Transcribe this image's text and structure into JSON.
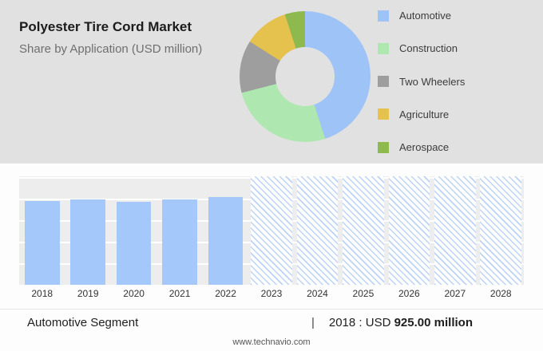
{
  "header": {
    "title": "Polyester Tire Cord Market",
    "subtitle": "Share by Application (USD million)"
  },
  "legend": [
    {
      "label": "Automotive",
      "color": "#9dc3f7"
    },
    {
      "label": "Construction",
      "color": "#aee8b0"
    },
    {
      "label": "Two Wheelers",
      "color": "#9e9e9e"
    },
    {
      "label": "Agriculture",
      "color": "#e5c14d"
    },
    {
      "label": "Aerospace",
      "color": "#8db94e"
    }
  ],
  "chart_data": [
    {
      "type": "pie",
      "title": "Polyester Tire Cord Market — Share by Application (USD million)",
      "labels": [
        "Automotive",
        "Construction",
        "Two Wheelers",
        "Agriculture",
        "Aerospace"
      ],
      "values_pct": [
        45,
        26,
        13,
        11,
        5
      ],
      "colors": [
        "#9dc3f7",
        "#aee8b0",
        "#9e9e9e",
        "#e5c14d",
        "#8db94e"
      ],
      "donut": true,
      "legend_position": "right"
    },
    {
      "type": "bar",
      "title": "Automotive Segment",
      "categories": [
        "2018",
        "2019",
        "2020",
        "2021",
        "2022",
        "2023",
        "2024",
        "2025",
        "2026",
        "2027",
        "2028"
      ],
      "values": [
        925,
        945,
        920,
        940,
        975,
        null,
        null,
        null,
        null,
        null,
        null
      ],
      "forecast_categories": [
        "2023",
        "2024",
        "2025",
        "2026",
        "2027",
        "2028"
      ],
      "ylim": [
        0,
        1200
      ],
      "bar_color": "#a5c8fa",
      "annotation": "2018 : USD 925.00 million",
      "grid": true,
      "legend_position": "none"
    }
  ],
  "footer": {
    "segment_label": "Automotive Segment",
    "separator": "|",
    "stat_prefix": "2018 : USD",
    "stat_value": "925.00",
    "stat_suffix": "million",
    "website": "www.technavio.com"
  }
}
